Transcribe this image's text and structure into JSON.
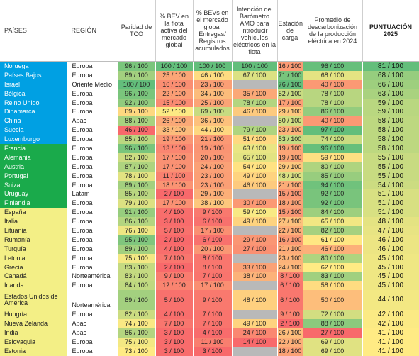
{
  "chart_data": {
    "type": "table",
    "columns": [
      "PAÍSES",
      "REGIÓN",
      "Paridad de TCO",
      "% BEV en la flota activa del mercado global",
      "% BEVs en el mercado global Entregas/ Registros acumulados",
      "Intención del Barómetro AMO para introducir vehículos eléctricos en la flota",
      "Estación de carga",
      "Promedio de descarbonización de la producción eléctrica en 2024",
      "PUNTUACIÓN 2025"
    ],
    "colors": {
      "tier_blue": "#00a0e3",
      "tier_green": "#1aaa4b",
      "tier_yellow": "#f3ef86",
      "scale_green": "#63be7b",
      "scale_yellow": "#ffeb84",
      "scale_red": "#f8696b",
      "missing_gray": "#b9b9b9"
    },
    "rows": [
      {
        "country": "Noruega",
        "region": "Europa",
        "tier": "blue",
        "values": [
          "96 / 100",
          "100 / 100",
          "100 / 100",
          "100 / 100",
          "16 / 100",
          "96 / 100",
          "81 / 100"
        ]
      },
      {
        "country": "Países Bajos",
        "region": "Europa",
        "tier": "blue",
        "values": [
          "89 / 100",
          "25 / 100",
          "46 / 100",
          "67 / 100",
          "71 / 100",
          "68 / 100",
          "68 / 100"
        ]
      },
      {
        "country": "Israel",
        "region": "Oriente Medio",
        "tier": "blue",
        "values": [
          "100 / 100",
          "16 / 100",
          "23 / 100",
          "",
          "76 / 100",
          "40 / 100",
          "66 / 100"
        ]
      },
      {
        "country": "Bélgica",
        "region": "Europa",
        "tier": "blue",
        "values": [
          "96 / 100",
          "22 / 100",
          "34 / 100",
          "35 / 100",
          "52 / 100",
          "78 / 100",
          "63 / 100"
        ]
      },
      {
        "country": "Reino Unido",
        "region": "Europa",
        "tier": "blue",
        "values": [
          "92 / 100",
          "15 / 100",
          "25 / 100",
          "78 / 100",
          "17 / 100",
          "78 / 100",
          "59 / 100"
        ]
      },
      {
        "country": "Dinamarca",
        "region": "Europa",
        "tier": "blue",
        "values": [
          "69 / 100",
          "52 / 100",
          "69 / 100",
          "46 / 100",
          "29 / 100",
          "86 / 100",
          "59 / 100"
        ]
      },
      {
        "country": "China",
        "region": "Apac",
        "tier": "blue",
        "values": [
          "88 / 100",
          "26 / 100",
          "36 / 100",
          "",
          "50 / 100",
          "40 / 100",
          "58 / 100"
        ]
      },
      {
        "country": "Suecia",
        "region": "Europa",
        "tier": "blue",
        "values": [
          "46 / 100",
          "33 / 100",
          "44 / 100",
          "79 / 100",
          "23 / 100",
          "97 / 100",
          "58 / 100"
        ]
      },
      {
        "country": "Luxemburgo",
        "region": "Europa",
        "tier": "blue",
        "values": [
          "85 / 100",
          "19 / 100",
          "21 / 100",
          "51 / 100",
          "53 / 100",
          "74 / 100",
          "58 / 100"
        ]
      },
      {
        "country": "Francia",
        "region": "Europa",
        "tier": "green",
        "values": [
          "96 / 100",
          "13 / 100",
          "19 / 100",
          "63 / 100",
          "19 / 100",
          "96 / 100",
          "58 / 100"
        ]
      },
      {
        "country": "Alemania",
        "region": "Europa",
        "tier": "green",
        "values": [
          "82 / 100",
          "17 / 100",
          "20 / 100",
          "65 / 100",
          "19 / 100",
          "59 / 100",
          "55 / 100"
        ]
      },
      {
        "country": "Austria",
        "region": "Europa",
        "tier": "green",
        "values": [
          "87 / 100",
          "17 / 100",
          "24 / 100",
          "54 / 100",
          "29 / 100",
          "80 / 100",
          "55 / 100"
        ]
      },
      {
        "country": "Portugal",
        "region": "Europa",
        "tier": "green",
        "values": [
          "78 / 100",
          "11 / 100",
          "23 / 100",
          "49 / 100",
          "48 / 100",
          "85 / 100",
          "55 / 100"
        ]
      },
      {
        "country": "Suiza",
        "region": "Europa",
        "tier": "green",
        "values": [
          "89 / 100",
          "18 / 100",
          "23 / 100",
          "46 / 100",
          "21 / 100",
          "94 / 100",
          "54 / 100"
        ]
      },
      {
        "country": "Uruguay",
        "region": "Latam",
        "tier": "green",
        "values": [
          "85 / 100",
          "2 / 100",
          "29 / 100",
          "",
          "15 / 100",
          "92 / 100",
          "51 / 100"
        ]
      },
      {
        "country": "Finlandia",
        "region": "Europa",
        "tier": "green",
        "values": [
          "79 / 100",
          "17 / 100",
          "38 / 100",
          "30 / 100",
          "18 / 100",
          "92 / 100",
          "51 / 100"
        ]
      },
      {
        "country": "España",
        "region": "Europa",
        "tier": "yellow",
        "values": [
          "91 / 100",
          "4 / 100",
          "9 / 100",
          "59 / 100",
          "15 / 100",
          "84 / 100",
          "51 / 100"
        ]
      },
      {
        "country": "Italia",
        "region": "Europa",
        "tier": "yellow",
        "values": [
          "86 / 100",
          "3 / 100",
          "6 / 100",
          "49 / 100",
          "27 / 100",
          "65 / 100",
          "48 / 100"
        ]
      },
      {
        "country": "Lituania",
        "region": "Europa",
        "tier": "yellow",
        "values": [
          "76 / 100",
          "5 / 100",
          "17 / 100",
          "",
          "22 / 100",
          "82 / 100",
          "47 / 100"
        ]
      },
      {
        "country": "Rumanía",
        "region": "Europa",
        "tier": "yellow",
        "values": [
          "95 / 100",
          "2 / 100",
          "6 / 100",
          "29 / 100",
          "16 / 100",
          "61 / 100",
          "46 / 100"
        ]
      },
      {
        "country": "Turquía",
        "region": "Europa",
        "tier": "yellow",
        "values": [
          "89 / 100",
          "4 / 100",
          "20 / 100",
          "27 / 100",
          "21 / 100",
          "46 / 100",
          "46 / 100"
        ]
      },
      {
        "country": "Letonia",
        "region": "Europa",
        "tier": "yellow",
        "values": [
          "75 / 100",
          "7 / 100",
          "8 / 100",
          "",
          "23 / 100",
          "80 / 100",
          "45 / 100"
        ]
      },
      {
        "country": "Grecia",
        "region": "Europa",
        "tier": "yellow",
        "values": [
          "83 / 100",
          "2 / 100",
          "8 / 100",
          "33 / 100",
          "24 / 100",
          "62 / 100",
          "45 / 100"
        ]
      },
      {
        "country": "Canadá",
        "region": "Norteamérica",
        "tier": "yellow",
        "values": [
          "83 / 100",
          "9 / 100",
          "7 / 100",
          "38 / 100",
          "8 / 100",
          "83 / 100",
          "45 / 100"
        ]
      },
      {
        "country": "Irlanda",
        "region": "Europa",
        "tier": "yellow",
        "values": [
          "84 / 100",
          "12 / 100",
          "17 / 100",
          "",
          "6 / 100",
          "58 / 100",
          "45 / 100"
        ]
      },
      {
        "country": "Estados Unidos de América",
        "region": "Norteamérica",
        "tier": "yellow",
        "tall": true,
        "values": [
          "89 / 100",
          "5 / 100",
          "9 / 100",
          "48 / 100",
          "6 / 100",
          "50 / 100",
          "44 / 100"
        ]
      },
      {
        "country": "Hungría",
        "region": "Europa",
        "tier": "yellow",
        "values": [
          "82 / 100",
          "4 / 100",
          "7 / 100",
          "",
          "9 / 100",
          "72 / 100",
          "42 / 100"
        ]
      },
      {
        "country": "Nueva Zelanda",
        "region": "Apac",
        "tier": "yellow",
        "values": [
          "74 / 100",
          "7 / 100",
          "7 / 100",
          "49 / 100",
          "2 / 100",
          "88 / 100",
          "42 / 100"
        ]
      },
      {
        "country": "India",
        "region": "Apac",
        "tier": "yellow",
        "values": [
          "86 / 100",
          "3 / 100",
          "4 / 100",
          "24 / 100",
          "26 / 100",
          "27 / 100",
          "41 / 100"
        ]
      },
      {
        "country": "Eslovaquia",
        "region": "Europa",
        "tier": "yellow",
        "values": [
          "75 / 100",
          "3 / 100",
          "11 / 100",
          "14 / 100",
          "22 / 100",
          "69 / 100",
          "41 / 100"
        ]
      },
      {
        "country": "Estonia",
        "region": "Europa",
        "tier": "yellow",
        "values": [
          "73 / 100",
          "3 / 100",
          "3 / 100",
          "",
          "18 / 100",
          "69 / 100",
          "41 / 100"
        ]
      }
    ]
  }
}
